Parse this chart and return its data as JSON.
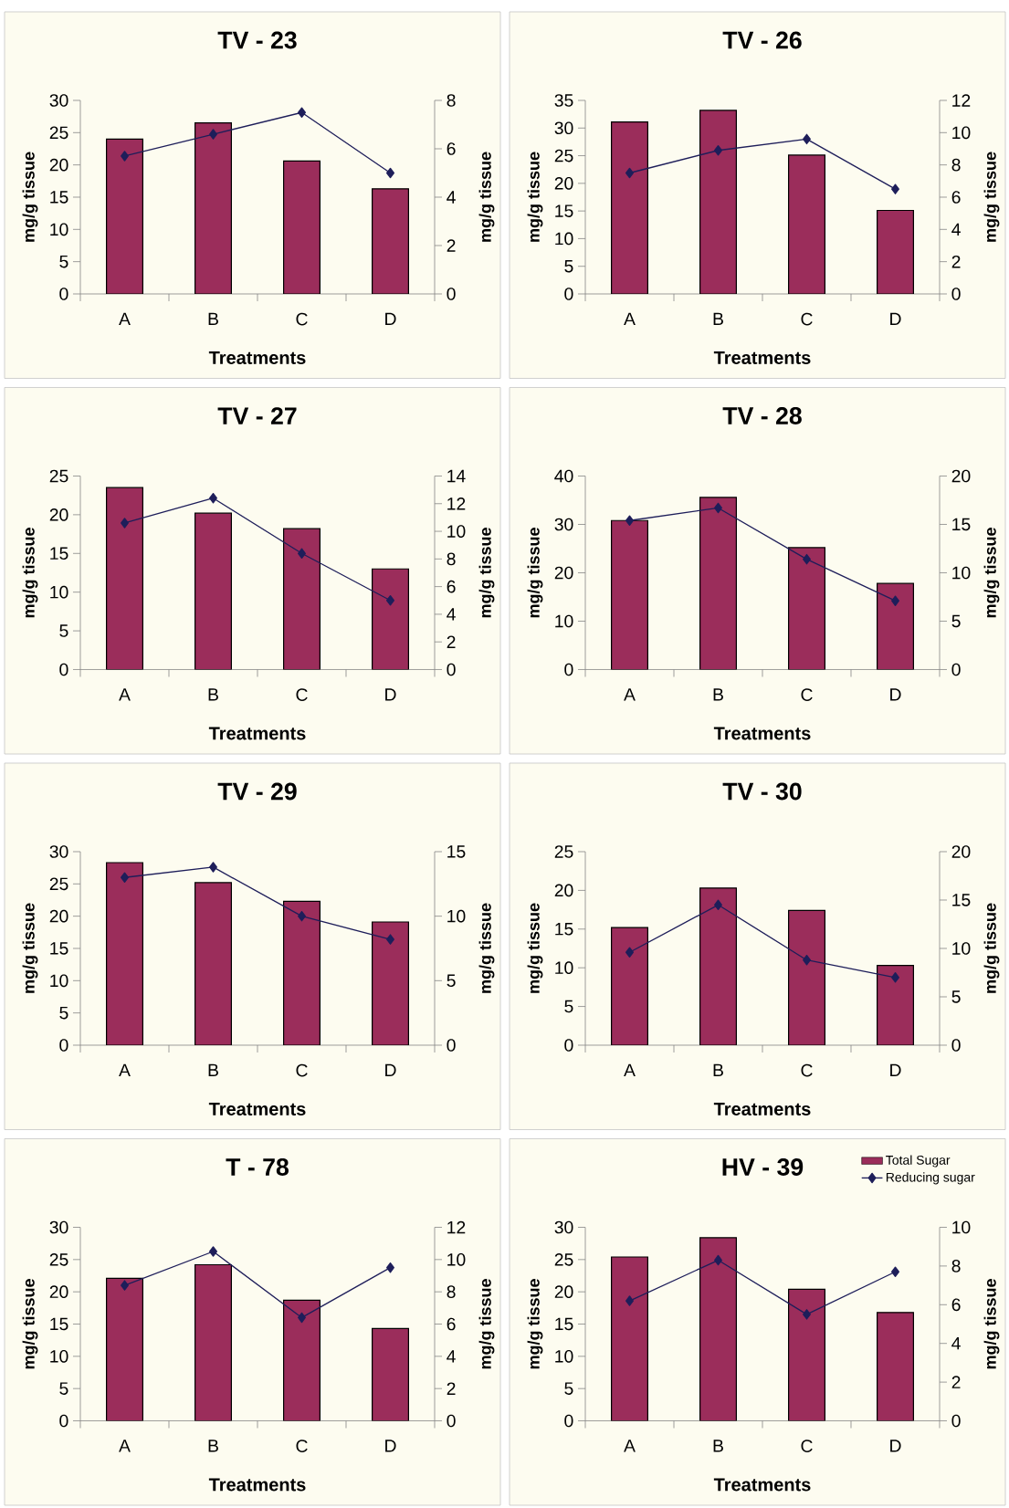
{
  "chart_data": [
    {
      "type": "bar",
      "title": "TV - 23",
      "xlabel": "Treatments",
      "ylabel": "mg/g tissue",
      "y2label": "mg/g tissue",
      "categories": [
        "A",
        "B",
        "C",
        "D"
      ],
      "marker": "diamond",
      "series": [
        {
          "color": "#9b2d5b",
          "values": [
            24.0,
            26.5,
            20.6,
            16.3
          ]
        },
        {
          "type": "line",
          "axis": "y2",
          "color": "#1e1e5a",
          "values": [
            5.7,
            6.6,
            7.5,
            5.0
          ]
        }
      ],
      "ylim": [
        0,
        30
      ],
      "yticks": [
        0,
        5,
        10,
        15,
        20,
        25,
        30
      ],
      "y2lim": [
        0,
        8
      ],
      "y2ticks": [
        0,
        2,
        4,
        6,
        8
      ]
    },
    {
      "type": "bar",
      "title": "TV - 26",
      "xlabel": "Treatments",
      "ylabel": "mg/g tissue",
      "y2label": "mg/g tissue",
      "categories": [
        "A",
        "B",
        "C",
        "D"
      ],
      "marker": "diamond",
      "series": [
        {
          "color": "#9b2d5b",
          "values": [
            31.1,
            33.2,
            25.1,
            15.1
          ]
        },
        {
          "type": "line",
          "axis": "y2",
          "color": "#1e1e5a",
          "values": [
            7.5,
            8.9,
            9.6,
            6.5
          ]
        }
      ],
      "ylim": [
        0,
        35
      ],
      "yticks": [
        0,
        5,
        10,
        15,
        20,
        25,
        30,
        35
      ],
      "y2lim": [
        0,
        12
      ],
      "y2ticks": [
        0,
        2,
        4,
        6,
        8,
        10,
        12
      ]
    },
    {
      "type": "bar",
      "title": "TV - 27",
      "xlabel": "Treatments",
      "ylabel": "mg/g tissue",
      "y2label": "mg/g tissue",
      "categories": [
        "A",
        "B",
        "C",
        "D"
      ],
      "marker": "diamond",
      "series": [
        {
          "color": "#9b2d5b",
          "values": [
            23.5,
            20.2,
            18.2,
            13.0
          ]
        },
        {
          "type": "line",
          "axis": "y2",
          "color": "#1e1e5a",
          "values": [
            10.6,
            12.4,
            8.4,
            5.0
          ]
        }
      ],
      "ylim": [
        0,
        25
      ],
      "yticks": [
        0,
        5,
        10,
        15,
        20,
        25
      ],
      "y2lim": [
        0,
        14
      ],
      "y2ticks": [
        0,
        2,
        4,
        6,
        8,
        10,
        12,
        14
      ]
    },
    {
      "type": "bar",
      "title": "TV - 28",
      "xlabel": "Treatments",
      "ylabel": "mg/g tissue",
      "y2label": "mg/g tissue",
      "categories": [
        "A",
        "B",
        "C",
        "D"
      ],
      "marker": "diamond",
      "series": [
        {
          "color": "#9b2d5b",
          "values": [
            30.8,
            35.6,
            25.2,
            17.8
          ]
        },
        {
          "type": "line",
          "axis": "y2",
          "color": "#1e1e5a",
          "values": [
            15.4,
            16.7,
            11.4,
            7.1
          ]
        }
      ],
      "ylim": [
        0,
        40
      ],
      "yticks": [
        0,
        10,
        20,
        30,
        40
      ],
      "y2lim": [
        0,
        20
      ],
      "y2ticks": [
        0,
        5,
        10,
        15,
        20
      ]
    },
    {
      "type": "bar",
      "title": "TV - 29",
      "xlabel": "Treatments",
      "ylabel": "mg/g tissue",
      "y2label": "mg/g tissue",
      "categories": [
        "A",
        "B",
        "C",
        "D"
      ],
      "marker": "diamond",
      "series": [
        {
          "color": "#9b2d5b",
          "values": [
            28.3,
            25.2,
            22.3,
            19.1
          ]
        },
        {
          "type": "line",
          "axis": "y2",
          "color": "#1e1e5a",
          "values": [
            13.0,
            13.8,
            10.0,
            8.2
          ]
        }
      ],
      "ylim": [
        0,
        30
      ],
      "yticks": [
        0,
        5,
        10,
        15,
        20,
        25,
        30
      ],
      "y2lim": [
        0,
        15
      ],
      "y2ticks": [
        0,
        5,
        10,
        15
      ]
    },
    {
      "type": "bar",
      "title": "TV - 30",
      "xlabel": "Treatments",
      "ylabel": "mg/g tissue",
      "y2label": "mg/g tissue",
      "categories": [
        "A",
        "B",
        "C",
        "D"
      ],
      "marker": "diamond",
      "series": [
        {
          "color": "#9b2d5b",
          "values": [
            15.2,
            20.3,
            17.4,
            10.3
          ]
        },
        {
          "type": "line",
          "axis": "y2",
          "color": "#1e1e5a",
          "values": [
            9.6,
            14.5,
            8.8,
            7.0
          ]
        }
      ],
      "ylim": [
        0,
        25
      ],
      "yticks": [
        0,
        5,
        10,
        15,
        20,
        25
      ],
      "y2lim": [
        0,
        20
      ],
      "y2ticks": [
        0,
        5,
        10,
        15,
        20
      ]
    },
    {
      "type": "bar",
      "title": "T - 78",
      "xlabel": "Treatments",
      "ylabel": "mg/g tissue",
      "y2label": "mg/g tissue",
      "categories": [
        "A",
        "B",
        "C",
        "D"
      ],
      "marker": "diamond",
      "series": [
        {
          "color": "#9b2d5b",
          "values": [
            22.1,
            24.2,
            18.7,
            14.3
          ]
        },
        {
          "type": "line",
          "axis": "y2",
          "color": "#1e1e5a",
          "values": [
            8.4,
            10.5,
            6.4,
            9.5
          ]
        }
      ],
      "ylim": [
        0,
        30
      ],
      "yticks": [
        0,
        5,
        10,
        15,
        20,
        25,
        30
      ],
      "y2lim": [
        0,
        12
      ],
      "y2ticks": [
        0,
        2,
        4,
        6,
        8,
        10,
        12
      ]
    },
    {
      "type": "bar",
      "title": "HV - 39",
      "xlabel": "Treatments",
      "ylabel": "mg/g tissue",
      "y2label": "mg/g tissue",
      "categories": [
        "A",
        "B",
        "C",
        "D"
      ],
      "marker": "diamond",
      "legend": "top right",
      "series": [
        {
          "name": "Total Sugar",
          "color": "#9b2d5b",
          "values": [
            25.4,
            28.4,
            20.4,
            16.8
          ]
        },
        {
          "name": "Reducing sugar",
          "type": "line",
          "axis": "y2",
          "color": "#1e1e5a",
          "values": [
            6.2,
            8.3,
            5.5,
            7.7
          ]
        }
      ],
      "ylim": [
        0,
        30
      ],
      "yticks": [
        0,
        5,
        10,
        15,
        20,
        25,
        30
      ],
      "y2lim": [
        0,
        10
      ],
      "y2ticks": [
        0,
        2,
        4,
        6,
        8,
        10
      ]
    }
  ]
}
